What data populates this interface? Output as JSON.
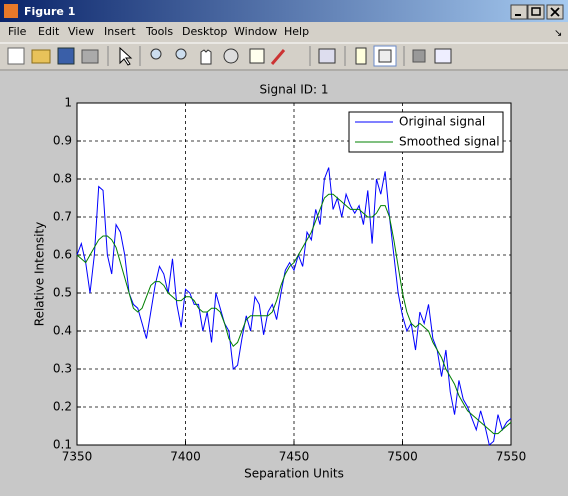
{
  "window": {
    "title": "Figure 1",
    "menu": [
      "File",
      "Edit",
      "View",
      "Insert",
      "Tools",
      "Desktop",
      "Window",
      "Help"
    ]
  },
  "chart_data": {
    "type": "line",
    "title": "Signal ID: 1",
    "x_label": "Separation Units",
    "y_label": "Relative Intensity",
    "x": [
      7350,
      7352,
      7354,
      7356,
      7358,
      7360,
      7362,
      7364,
      7366,
      7368,
      7370,
      7372,
      7374,
      7376,
      7378,
      7380,
      7382,
      7384,
      7386,
      7388,
      7390,
      7392,
      7394,
      7396,
      7398,
      7400,
      7402,
      7404,
      7406,
      7408,
      7410,
      7412,
      7414,
      7416,
      7418,
      7420,
      7422,
      7424,
      7426,
      7428,
      7430,
      7432,
      7434,
      7436,
      7438,
      7440,
      7442,
      7444,
      7446,
      7448,
      7450,
      7452,
      7454,
      7456,
      7458,
      7460,
      7462,
      7464,
      7466,
      7468,
      7470,
      7472,
      7474,
      7476,
      7478,
      7480,
      7482,
      7484,
      7486,
      7488,
      7490,
      7492,
      7494,
      7496,
      7498,
      7500,
      7502,
      7504,
      7506,
      7508,
      7510,
      7512,
      7514,
      7516,
      7518,
      7520,
      7522,
      7524,
      7526,
      7528,
      7530,
      7532,
      7534,
      7536,
      7538,
      7540,
      7542,
      7544,
      7546,
      7548,
      7550
    ],
    "series": [
      {
        "name": "Original signal",
        "color": "#0000ff",
        "values": [
          0.6,
          0.63,
          0.58,
          0.5,
          0.6,
          0.78,
          0.77,
          0.6,
          0.55,
          0.68,
          0.66,
          0.6,
          0.5,
          0.47,
          0.46,
          0.42,
          0.38,
          0.45,
          0.52,
          0.57,
          0.55,
          0.5,
          0.59,
          0.47,
          0.41,
          0.51,
          0.5,
          0.47,
          0.47,
          0.4,
          0.45,
          0.37,
          0.5,
          0.46,
          0.42,
          0.4,
          0.3,
          0.31,
          0.38,
          0.44,
          0.4,
          0.49,
          0.47,
          0.39,
          0.45,
          0.47,
          0.43,
          0.5,
          0.56,
          0.58,
          0.56,
          0.6,
          0.57,
          0.66,
          0.64,
          0.72,
          0.68,
          0.8,
          0.83,
          0.72,
          0.75,
          0.7,
          0.76,
          0.73,
          0.71,
          0.73,
          0.68,
          0.77,
          0.63,
          0.8,
          0.76,
          0.82,
          0.7,
          0.6,
          0.5,
          0.44,
          0.4,
          0.42,
          0.35,
          0.45,
          0.42,
          0.47,
          0.38,
          0.35,
          0.28,
          0.35,
          0.24,
          0.18,
          0.27,
          0.22,
          0.2,
          0.17,
          0.14,
          0.19,
          0.15,
          0.1,
          0.11,
          0.18,
          0.14,
          0.16,
          0.17
        ]
      },
      {
        "name": "Smoothed signal",
        "color": "#008000",
        "values": [
          0.6,
          0.59,
          0.58,
          0.6,
          0.62,
          0.64,
          0.65,
          0.65,
          0.64,
          0.62,
          0.58,
          0.54,
          0.5,
          0.46,
          0.45,
          0.46,
          0.49,
          0.52,
          0.53,
          0.53,
          0.52,
          0.5,
          0.49,
          0.48,
          0.48,
          0.49,
          0.49,
          0.48,
          0.46,
          0.45,
          0.45,
          0.46,
          0.46,
          0.45,
          0.42,
          0.38,
          0.36,
          0.37,
          0.4,
          0.43,
          0.44,
          0.44,
          0.44,
          0.44,
          0.44,
          0.45,
          0.48,
          0.52,
          0.55,
          0.57,
          0.58,
          0.6,
          0.62,
          0.64,
          0.66,
          0.69,
          0.72,
          0.75,
          0.76,
          0.76,
          0.75,
          0.74,
          0.73,
          0.72,
          0.72,
          0.72,
          0.71,
          0.7,
          0.7,
          0.71,
          0.73,
          0.73,
          0.7,
          0.64,
          0.57,
          0.5,
          0.45,
          0.42,
          0.41,
          0.42,
          0.41,
          0.4,
          0.37,
          0.35,
          0.33,
          0.3,
          0.28,
          0.26,
          0.23,
          0.21,
          0.19,
          0.18,
          0.17,
          0.16,
          0.15,
          0.14,
          0.13,
          0.13,
          0.14,
          0.15,
          0.16
        ]
      }
    ],
    "xlim": [
      7350,
      7550
    ],
    "xticks": [
      7350,
      7400,
      7450,
      7500,
      7550
    ],
    "ylim": [
      0.1,
      1
    ],
    "yticks": [
      0.1,
      0.2,
      0.3,
      0.4,
      0.5,
      0.6,
      0.7,
      0.8,
      0.9,
      1
    ],
    "grid": true,
    "legend": "upper right"
  }
}
